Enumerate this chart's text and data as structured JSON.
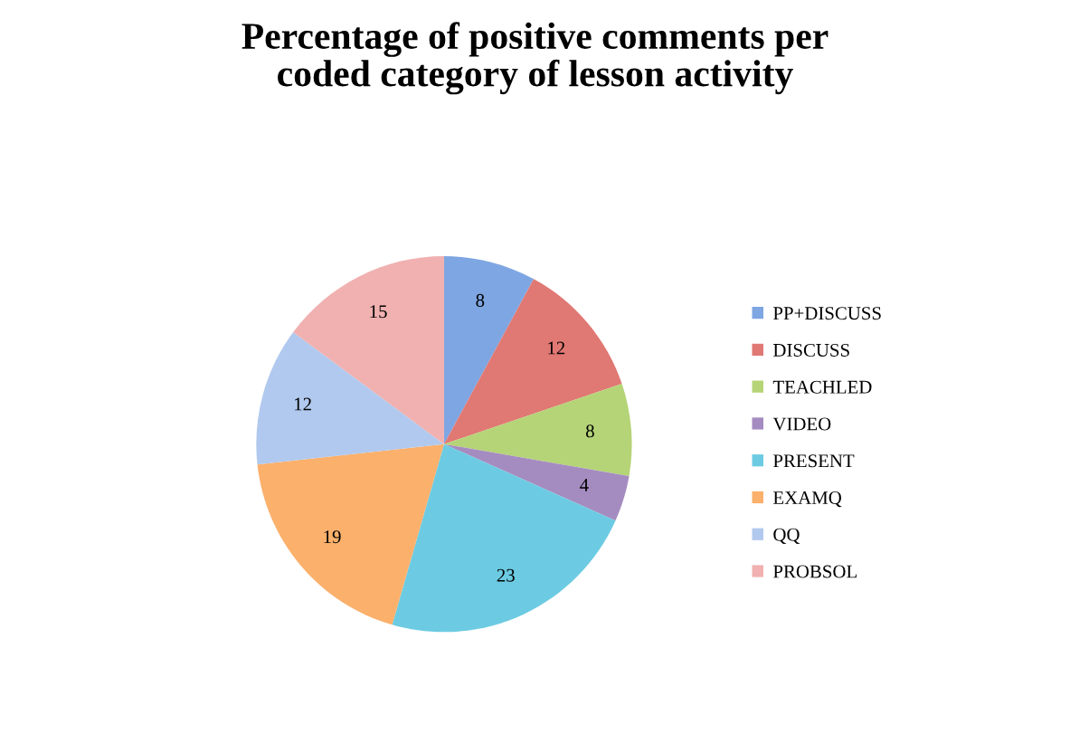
{
  "chart_data": {
    "type": "pie",
    "title": "Percentage of positive comments per\ncoded category of lesson activity",
    "categories": [
      "PP+DISCUSS",
      "DISCUSS",
      "TEACHLED",
      "VIDEO",
      "PRESENT",
      "EXAMQ",
      "QQ",
      "PROBSOL"
    ],
    "values": [
      8,
      12,
      8,
      4,
      23,
      19,
      12,
      15
    ],
    "colors": [
      "#7ea6e2",
      "#e07873",
      "#b5d477",
      "#a58cc0",
      "#6ccbe2",
      "#fbb06c",
      "#b1c9ee",
      "#f0b1b0"
    ],
    "data_labels": true,
    "legend": "right"
  }
}
